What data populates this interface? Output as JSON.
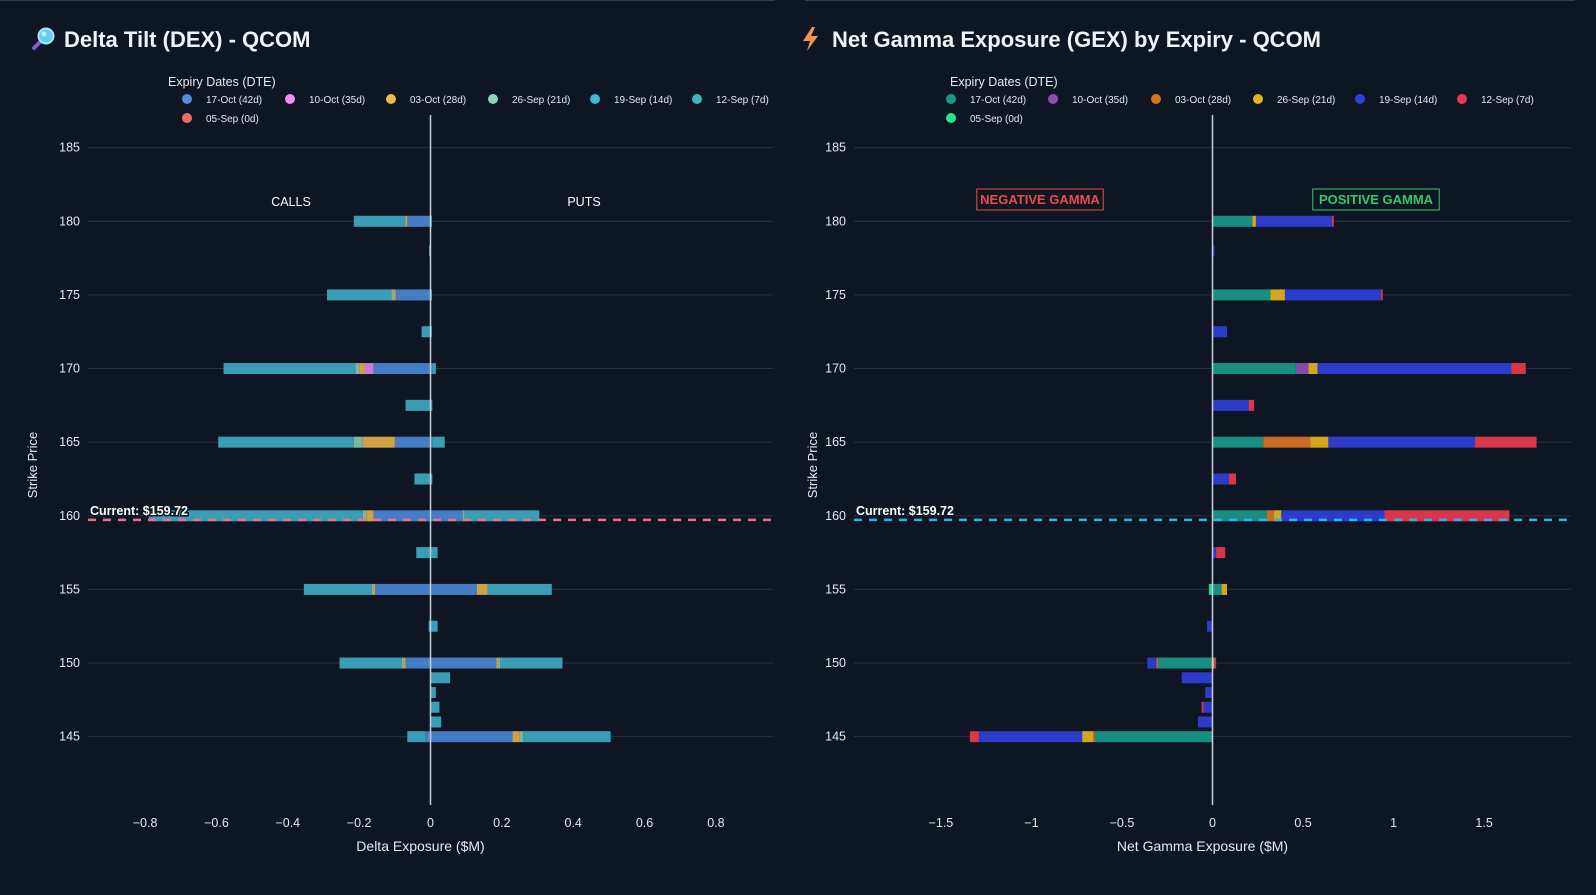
{
  "chart_data": [
    {
      "type": "bar",
      "orientation": "horizontal",
      "stacked": true,
      "title": "Delta Tilt (DEX) - QCOM",
      "title_icon": "magnifier-icon",
      "legend_title": "Expiry Dates (DTE)",
      "xlabel": "Delta Exposure ($M)",
      "ylabel": "Strike Price",
      "xlim": [
        -0.96,
        0.96
      ],
      "ylim": [
        140.7,
        186.2
      ],
      "xticks": [
        -0.8,
        -0.6,
        -0.4,
        -0.2,
        0,
        0.2,
        0.4,
        0.6,
        0.8
      ],
      "xtick_labels": [
        "−0.8",
        "−0.6",
        "−0.4",
        "−0.2",
        "0",
        "0.2",
        "0.4",
        "0.6",
        "0.8"
      ],
      "yticks": [
        145,
        150,
        155,
        160,
        165,
        170,
        175,
        180,
        185
      ],
      "annotations": {
        "left": "CALLS",
        "right": "PUTS"
      },
      "current_label": "Current: $159.72",
      "current_price": 159.72,
      "current_line_color": "#f06e8a",
      "series": [
        {
          "name": "17-Oct (42d)",
          "color": "#4f8fe0"
        },
        {
          "name": "10-Oct (35d)",
          "color": "#f08cf0"
        },
        {
          "name": "03-Oct (28d)",
          "color": "#f2b84b"
        },
        {
          "name": "26-Sep (21d)",
          "color": "#8fd3b3"
        },
        {
          "name": "19-Sep (14d)",
          "color": "#41b6cf"
        },
        {
          "name": "12-Sep (7d)",
          "color": "#3fb7b7"
        },
        {
          "name": "05-Sep (0d)",
          "color": "#f06a6a"
        }
      ],
      "bars": [
        {
          "strike": 180,
          "calls": [
            -0.065,
            0,
            -0.005,
            0,
            -0.145,
            0,
            0
          ],
          "puts": [
            0,
            0,
            0,
            0,
            0.004,
            0,
            0
          ]
        },
        {
          "strike": 178,
          "calls": [
            0,
            0,
            0,
            0,
            -0.004,
            0,
            0
          ],
          "puts": [
            0,
            0,
            0,
            0,
            0,
            0,
            0
          ]
        },
        {
          "strike": 175,
          "calls": [
            -0.098,
            0,
            -0.006,
            -0.006,
            -0.18,
            0,
            0
          ],
          "puts": [
            0,
            0,
            0,
            0,
            0.004,
            0,
            0
          ]
        },
        {
          "strike": 172.5,
          "calls": [
            0,
            0,
            0,
            0,
            -0.025,
            0,
            0
          ],
          "puts": [
            0,
            0,
            0,
            0,
            0.004,
            0,
            0
          ]
        },
        {
          "strike": 170,
          "calls": [
            -0.16,
            -0.025,
            -0.015,
            -0.01,
            -0.37,
            0,
            0
          ],
          "puts": [
            0.005,
            0,
            0,
            0,
            0.01,
            0,
            0
          ]
        },
        {
          "strike": 167.5,
          "calls": [
            0,
            0,
            0,
            0,
            -0.07,
            0,
            0
          ],
          "puts": [
            0,
            0,
            0,
            0,
            0.005,
            0,
            0
          ]
        },
        {
          "strike": 165,
          "calls": [
            -0.1,
            0,
            -0.09,
            -0.025,
            -0.38,
            0,
            0
          ],
          "puts": [
            0.005,
            0,
            0,
            0,
            0.035,
            0,
            0
          ]
        },
        {
          "strike": 162.5,
          "calls": [
            0,
            0,
            0,
            0,
            -0.045,
            0,
            0
          ],
          "puts": [
            0,
            0,
            0,
            0,
            0.005,
            0,
            0
          ]
        },
        {
          "strike": 160,
          "calls": [
            -0.16,
            0,
            -0.02,
            -0.01,
            -0.6,
            0,
            0
          ],
          "puts": [
            0.09,
            0,
            0,
            0.005,
            0.21,
            0,
            0
          ]
        },
        {
          "strike": 157.5,
          "calls": [
            0,
            0,
            0,
            0,
            -0.04,
            0,
            0
          ],
          "puts": [
            0,
            0,
            0,
            0,
            0.02,
            0,
            0
          ]
        },
        {
          "strike": 155,
          "calls": [
            -0.155,
            0,
            -0.006,
            -0.004,
            -0.19,
            0,
            0
          ],
          "puts": [
            0.13,
            0,
            0.03,
            0,
            0.18,
            0,
            0
          ]
        },
        {
          "strike": 152.5,
          "calls": [
            0,
            0,
            0,
            0,
            -0.005,
            0,
            0
          ],
          "puts": [
            0,
            0,
            0,
            0,
            0.02,
            0,
            0
          ]
        },
        {
          "strike": 150,
          "calls": [
            -0.07,
            0,
            -0.006,
            -0.004,
            -0.175,
            0,
            0
          ],
          "puts": [
            0.185,
            0,
            0.006,
            0.004,
            0.175,
            0,
            0
          ]
        },
        {
          "strike": 149,
          "calls": [
            0,
            0,
            0,
            0,
            0,
            0,
            0
          ],
          "puts": [
            0,
            0,
            0,
            0,
            0.055,
            0,
            0
          ]
        },
        {
          "strike": 148,
          "calls": [
            0,
            0,
            0,
            0,
            0,
            0,
            0
          ],
          "puts": [
            0,
            0,
            0,
            0,
            0.015,
            0,
            0
          ]
        },
        {
          "strike": 147,
          "calls": [
            0,
            0,
            0,
            0,
            0,
            0,
            0
          ],
          "puts": [
            0,
            0,
            0,
            0,
            0.025,
            0,
            0
          ]
        },
        {
          "strike": 146,
          "calls": [
            0,
            0,
            0,
            0,
            0,
            0,
            0
          ],
          "puts": [
            0,
            0,
            0,
            0,
            0.03,
            0,
            0
          ]
        },
        {
          "strike": 145,
          "calls": [
            -0.015,
            0,
            0,
            0,
            -0.05,
            0,
            0
          ],
          "puts": [
            0.23,
            0,
            0.02,
            0.01,
            0.245,
            0,
            0
          ]
        }
      ]
    },
    {
      "type": "bar",
      "orientation": "horizontal",
      "stacked": true,
      "title": "Net Gamma Exposure (GEX) by Expiry - QCOM",
      "title_icon": "lightning-icon",
      "legend_title": "Expiry Dates (DTE)",
      "xlabel": "Net Gamma Exposure ($M)",
      "ylabel": "Strike Price",
      "xlim": [
        -1.98,
        1.98
      ],
      "ylim": [
        140.7,
        186.2
      ],
      "xticks": [
        -1.5,
        -1,
        -0.5,
        0,
        0.5,
        1,
        1.5
      ],
      "xtick_labels": [
        "−1.5",
        "−1",
        "−0.5",
        "0",
        "0.5",
        "1",
        "1.5"
      ],
      "yticks": [
        145,
        150,
        155,
        160,
        165,
        170,
        175,
        180,
        185
      ],
      "annotations": {
        "left": "NEGATIVE GAMMA",
        "right": "POSITIVE GAMMA"
      },
      "annotation_colors": {
        "left": "#ef4a4a",
        "right": "#2fcc6a"
      },
      "current_label": "Current: $159.72",
      "current_price": 159.72,
      "current_line_color": "#22b8e6",
      "series": [
        {
          "name": "17-Oct (42d)",
          "color": "#18998a"
        },
        {
          "name": "10-Oct (35d)",
          "color": "#8e4fb4"
        },
        {
          "name": "03-Oct (28d)",
          "color": "#d9741f"
        },
        {
          "name": "26-Sep (21d)",
          "color": "#e6b21c"
        },
        {
          "name": "19-Sep (14d)",
          "color": "#2f3fd9"
        },
        {
          "name": "12-Sep (7d)",
          "color": "#e8394f"
        },
        {
          "name": "05-Sep (0d)",
          "color": "#22e68a"
        }
      ],
      "bars": [
        {
          "strike": 180,
          "gex": [
            0.22,
            0,
            0,
            0.02,
            0.42,
            0.01,
            0
          ]
        },
        {
          "strike": 178,
          "gex": [
            0,
            0,
            0,
            0,
            0.01,
            0,
            0
          ]
        },
        {
          "strike": 175,
          "gex": [
            0.32,
            0,
            0,
            0.08,
            0.53,
            0.01,
            0
          ]
        },
        {
          "strike": 172.5,
          "gex": [
            0,
            0,
            0,
            0,
            0.08,
            0,
            0
          ]
        },
        {
          "strike": 170,
          "gex": [
            0.46,
            0.07,
            0,
            0.05,
            1.07,
            0.08,
            0
          ]
        },
        {
          "strike": 167.5,
          "gex": [
            0,
            0,
            0,
            0,
            0.2,
            0.03,
            0
          ]
        },
        {
          "strike": 165,
          "gex": [
            0.28,
            0,
            0.26,
            0.1,
            0.81,
            0.34,
            0
          ]
        },
        {
          "strike": 162.5,
          "gex": [
            0,
            0,
            0,
            0,
            0.09,
            0.04,
            0
          ]
        },
        {
          "strike": 160,
          "gex": [
            0.3,
            0,
            0.04,
            0.04,
            0.57,
            0.69,
            0
          ]
        },
        {
          "strike": 157.5,
          "gex": [
            0,
            0,
            0,
            0,
            0.02,
            0.05,
            0
          ]
        },
        {
          "strike": 155,
          "gex": [
            0.05,
            0,
            0,
            0.03,
            0,
            0,
            -0.02
          ]
        },
        {
          "strike": 152.5,
          "gex": [
            0,
            0,
            0,
            0,
            -0.03,
            0,
            0
          ]
        },
        {
          "strike": 150,
          "gex": [
            -0.3,
            0,
            -0.01,
            0.01,
            -0.05,
            0.01,
            0
          ]
        },
        {
          "strike": 149,
          "gex": [
            0,
            0,
            0,
            0,
            -0.17,
            0,
            0
          ]
        },
        {
          "strike": 148,
          "gex": [
            0,
            0,
            0,
            0,
            -0.04,
            0,
            0
          ]
        },
        {
          "strike": 147,
          "gex": [
            0,
            0,
            0,
            0,
            -0.05,
            -0.01,
            0
          ]
        },
        {
          "strike": 146,
          "gex": [
            0,
            0,
            0,
            0,
            -0.08,
            0,
            0
          ]
        },
        {
          "strike": 145,
          "gex": [
            -0.65,
            0,
            -0.01,
            -0.06,
            -0.57,
            -0.05,
            0
          ]
        }
      ]
    }
  ]
}
